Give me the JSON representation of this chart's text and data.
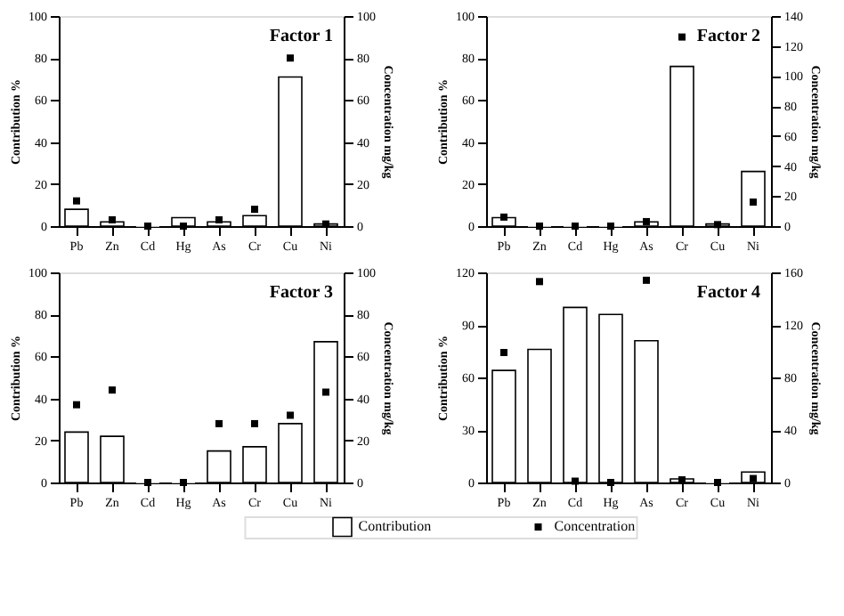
{
  "chart_data": [
    {
      "type": "bar",
      "title": "Factor 1",
      "ylabel": "Contribution %",
      "y2label": "Concentration mg/kg",
      "categories": [
        "Pb",
        "Zn",
        "Cd",
        "Hg",
        "As",
        "Cr",
        "Cu",
        "Ni"
      ],
      "ylim": [
        0,
        100
      ],
      "yticks": [
        0,
        20,
        40,
        60,
        80,
        100
      ],
      "y2lim": [
        0,
        100
      ],
      "y2ticks": [
        0,
        20,
        40,
        60,
        80,
        100
      ],
      "grid": false,
      "legend": "bottom",
      "series": [
        {
          "name": "Contribution",
          "color": "#ffffff",
          "values": [
            8,
            2,
            0,
            4,
            2,
            5,
            71,
            1
          ]
        },
        {
          "name": "Concentration",
          "type": "scatter",
          "axis": "y2",
          "marker": "square",
          "color": "#000000",
          "values": [
            12,
            3,
            0,
            0,
            3,
            8,
            80,
            1
          ]
        }
      ]
    },
    {
      "type": "bar",
      "title": "Factor 2",
      "ylabel": "Contribution %",
      "y2label": "Concentration mg/kg",
      "categories": [
        "Pb",
        "Zn",
        "Cd",
        "Hg",
        "As",
        "Cr",
        "Cu",
        "Ni"
      ],
      "ylim": [
        0,
        100
      ],
      "yticks": [
        0,
        20,
        40,
        60,
        80,
        100
      ],
      "y2lim": [
        0,
        140
      ],
      "y2ticks": [
        0,
        20,
        40,
        60,
        80,
        100,
        120,
        140
      ],
      "grid": false,
      "legend": "bottom",
      "series": [
        {
          "name": "Contribution",
          "color": "#ffffff",
          "values": [
            4,
            0,
            0,
            0,
            2,
            76,
            1,
            26
          ]
        },
        {
          "name": "Concentration",
          "type": "scatter",
          "axis": "y2",
          "marker": "square",
          "color": "#000000",
          "values": [
            6,
            0,
            0,
            0,
            3,
            126,
            1,
            16
          ]
        }
      ]
    },
    {
      "type": "bar",
      "title": "Factor 3",
      "ylabel": "Contribution %",
      "y2label": "Concentration mg/kg",
      "categories": [
        "Pb",
        "Zn",
        "Cd",
        "Hg",
        "As",
        "Cr",
        "Cu",
        "Ni"
      ],
      "ylim": [
        0,
        100
      ],
      "yticks": [
        0,
        20,
        40,
        60,
        80,
        100
      ],
      "y2lim": [
        0,
        100
      ],
      "y2ticks": [
        0,
        20,
        40,
        60,
        80,
        100
      ],
      "grid": false,
      "legend": "bottom",
      "series": [
        {
          "name": "Contribution",
          "color": "#ffffff",
          "values": [
            24,
            22,
            0,
            0,
            15,
            17,
            28,
            67
          ]
        },
        {
          "name": "Concentration",
          "type": "scatter",
          "axis": "y2",
          "marker": "square",
          "color": "#000000",
          "values": [
            37,
            44,
            0,
            0,
            28,
            28,
            32,
            43
          ]
        }
      ]
    },
    {
      "type": "bar",
      "title": "Factor 4",
      "ylabel": "Contribution %",
      "y2label": "Concentration mg/kg",
      "categories": [
        "Pb",
        "Zn",
        "Cd",
        "Hg",
        "As",
        "Cr",
        "Cu",
        "Ni"
      ],
      "ylim": [
        0,
        120
      ],
      "yticks": [
        0,
        30,
        60,
        90,
        120
      ],
      "y2lim": [
        0,
        160
      ],
      "y2ticks": [
        0,
        40,
        80,
        120,
        160
      ],
      "grid": false,
      "legend": "bottom",
      "series": [
        {
          "name": "Contribution",
          "color": "#ffffff",
          "values": [
            64,
            76,
            100,
            96,
            81,
            2,
            0,
            6
          ]
        },
        {
          "name": "Concentration",
          "type": "scatter",
          "axis": "y2",
          "marker": "square",
          "color": "#000000",
          "values": [
            99,
            153,
            1,
            0,
            154,
            2,
            0,
            3
          ]
        }
      ]
    }
  ]
}
